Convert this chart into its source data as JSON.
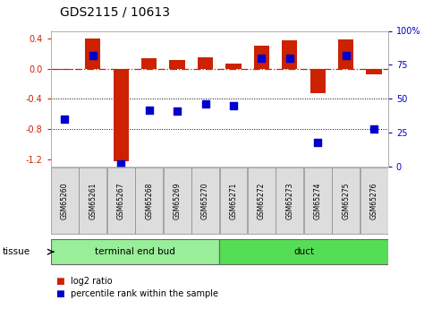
{
  "title": "GDS2115 / 10613",
  "samples": [
    "GSM65260",
    "GSM65261",
    "GSM65267",
    "GSM65268",
    "GSM65269",
    "GSM65270",
    "GSM65271",
    "GSM65272",
    "GSM65273",
    "GSM65274",
    "GSM65275",
    "GSM65276"
  ],
  "log2_ratio": [
    -0.02,
    0.4,
    -1.22,
    0.14,
    0.12,
    0.15,
    0.07,
    0.3,
    0.38,
    -0.32,
    0.39,
    -0.08
  ],
  "percentile_rank": [
    35,
    82,
    2,
    42,
    41,
    46,
    45,
    80,
    80,
    18,
    82,
    28
  ],
  "groups": [
    {
      "label": "terminal end bud",
      "start": 0,
      "end": 6,
      "color": "#99EE99"
    },
    {
      "label": "duct",
      "start": 6,
      "end": 12,
      "color": "#55DD55"
    }
  ],
  "ylim_left": [
    -1.3,
    0.5
  ],
  "ylim_right": [
    0,
    100
  ],
  "yticks_left": [
    0.4,
    0.0,
    -0.4,
    -0.8,
    -1.2
  ],
  "yticks_right": [
    100,
    75,
    50,
    25,
    0
  ],
  "hline_y": 0.0,
  "dotted_lines": [
    -0.4,
    -0.8
  ],
  "bar_color": "#CC2200",
  "dot_color": "#0000CC",
  "bar_width": 0.55,
  "dot_size": 28,
  "background_color": "#FFFFFF",
  "tissue_label": "tissue",
  "legend_log2": "log2 ratio",
  "legend_pct": "percentile rank within the sample"
}
